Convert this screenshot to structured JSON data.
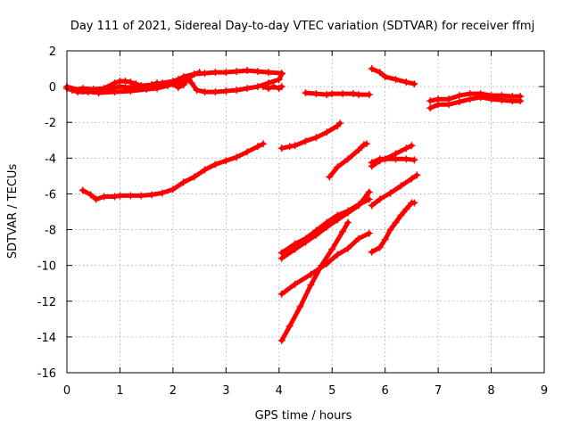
{
  "chart_data": {
    "type": "scatter",
    "title": "Day 111 of 2021, Sidereal Day-to-day VTEC variation (SDTVAR) for receiver ffmj",
    "xlabel": "GPS time / hours",
    "ylabel": "SDTVAR / TECUs",
    "xlim": [
      0,
      9
    ],
    "ylim": [
      -16,
      2
    ],
    "xticks": [
      0,
      1,
      2,
      3,
      4,
      5,
      6,
      7,
      8,
      9
    ],
    "yticks": [
      2,
      0,
      -2,
      -4,
      -6,
      -8,
      -10,
      -12,
      -14,
      -16
    ],
    "grid": true,
    "legend": "none",
    "marker": "plus",
    "color": "#ff0000",
    "series": [
      {
        "points": [
          [
            0.0,
            -0.1
          ],
          [
            0.2,
            -0.3
          ],
          [
            0.4,
            -0.3
          ],
          [
            0.6,
            -0.2
          ],
          [
            0.8,
            -0.1
          ],
          [
            1.0,
            0.0
          ],
          [
            1.2,
            -0.05
          ],
          [
            1.4,
            0.05
          ],
          [
            1.6,
            0.1
          ],
          [
            1.8,
            0.2
          ],
          [
            2.0,
            0.3
          ],
          [
            2.1,
            0.4
          ],
          [
            2.2,
            0.55
          ],
          [
            2.4,
            0.7
          ],
          [
            2.6,
            0.75
          ],
          [
            2.8,
            0.8
          ],
          [
            3.0,
            0.8
          ],
          [
            3.2,
            0.85
          ],
          [
            3.4,
            0.9
          ],
          [
            3.6,
            0.85
          ],
          [
            3.8,
            0.8
          ],
          [
            4.05,
            0.75
          ]
        ]
      },
      {
        "points": [
          [
            0.1,
            -0.2
          ],
          [
            0.3,
            -0.1
          ],
          [
            0.5,
            -0.15
          ],
          [
            0.7,
            -0.1
          ],
          [
            0.9,
            0.2
          ],
          [
            1.0,
            0.3
          ],
          [
            1.1,
            0.3
          ],
          [
            1.2,
            0.25
          ],
          [
            1.3,
            0.15
          ],
          [
            1.4,
            0.05
          ],
          [
            1.5,
            0.0
          ],
          [
            1.6,
            0.1
          ],
          [
            1.7,
            0.2
          ],
          [
            1.8,
            0.1
          ],
          [
            2.0,
            0.2
          ],
          [
            2.2,
            0.3
          ],
          [
            2.3,
            0.5
          ],
          [
            2.4,
            0.7
          ],
          [
            2.5,
            0.8
          ]
        ]
      },
      {
        "points": [
          [
            0.0,
            0.0
          ],
          [
            0.3,
            -0.25
          ],
          [
            0.6,
            -0.35
          ],
          [
            0.9,
            -0.3
          ],
          [
            1.2,
            -0.25
          ],
          [
            1.5,
            -0.15
          ],
          [
            1.7,
            -0.1
          ],
          [
            1.9,
            0.05
          ],
          [
            2.0,
            0.15
          ],
          [
            2.1,
            -0.05
          ],
          [
            2.2,
            0.1
          ],
          [
            2.3,
            0.5
          ],
          [
            2.35,
            0.2
          ],
          [
            2.45,
            -0.2
          ],
          [
            2.6,
            -0.3
          ],
          [
            2.8,
            -0.3
          ],
          [
            3.0,
            -0.25
          ],
          [
            3.2,
            -0.2
          ],
          [
            3.4,
            -0.1
          ],
          [
            3.6,
            0.0
          ],
          [
            3.8,
            0.2
          ],
          [
            4.0,
            0.4
          ],
          [
            4.05,
            0.7
          ]
        ]
      },
      {
        "points": [
          [
            3.7,
            0.0
          ],
          [
            3.8,
            -0.1
          ],
          [
            3.9,
            0.0
          ],
          [
            4.0,
            -0.1
          ],
          [
            4.05,
            0.0
          ]
        ]
      },
      {
        "points": [
          [
            4.5,
            -0.35
          ],
          [
            4.7,
            -0.4
          ],
          [
            4.9,
            -0.45
          ],
          [
            5.0,
            -0.4
          ],
          [
            5.2,
            -0.4
          ],
          [
            5.4,
            -0.4
          ],
          [
            5.5,
            -0.45
          ],
          [
            5.7,
            -0.45
          ]
        ]
      },
      {
        "points": [
          [
            5.75,
            1.0
          ],
          [
            5.9,
            0.8
          ],
          [
            6.0,
            0.55
          ],
          [
            6.2,
            0.4
          ],
          [
            6.4,
            0.25
          ],
          [
            6.55,
            0.15
          ]
        ]
      },
      {
        "points": [
          [
            6.85,
            -0.8
          ],
          [
            7.0,
            -0.7
          ],
          [
            7.2,
            -0.7
          ],
          [
            7.4,
            -0.5
          ],
          [
            7.6,
            -0.4
          ],
          [
            7.8,
            -0.4
          ],
          [
            8.0,
            -0.5
          ],
          [
            8.2,
            -0.5
          ],
          [
            8.4,
            -0.55
          ],
          [
            8.55,
            -0.55
          ]
        ]
      },
      {
        "points": [
          [
            6.85,
            -1.2
          ],
          [
            7.0,
            -1.0
          ],
          [
            7.2,
            -1.0
          ],
          [
            7.4,
            -0.85
          ],
          [
            7.6,
            -0.7
          ],
          [
            7.8,
            -0.6
          ],
          [
            8.0,
            -0.7
          ],
          [
            8.2,
            -0.75
          ],
          [
            8.4,
            -0.8
          ],
          [
            8.55,
            -0.8
          ]
        ]
      },
      {
        "points": [
          [
            0.3,
            -5.8
          ],
          [
            0.45,
            -6.05
          ],
          [
            0.55,
            -6.3
          ],
          [
            0.7,
            -6.15
          ],
          [
            0.9,
            -6.15
          ],
          [
            1.0,
            -6.1
          ],
          [
            1.2,
            -6.1
          ],
          [
            1.4,
            -6.1
          ],
          [
            1.6,
            -6.05
          ],
          [
            1.8,
            -5.95
          ],
          [
            2.0,
            -5.75
          ],
          [
            2.2,
            -5.35
          ],
          [
            2.4,
            -5.05
          ],
          [
            2.6,
            -4.65
          ],
          [
            2.8,
            -4.35
          ],
          [
            3.0,
            -4.15
          ],
          [
            3.2,
            -3.95
          ],
          [
            3.4,
            -3.65
          ],
          [
            3.6,
            -3.35
          ],
          [
            3.7,
            -3.2
          ]
        ]
      },
      {
        "points": [
          [
            4.05,
            -3.45
          ],
          [
            4.2,
            -3.35
          ],
          [
            4.3,
            -3.3
          ],
          [
            4.5,
            -3.05
          ],
          [
            4.7,
            -2.85
          ],
          [
            4.9,
            -2.55
          ],
          [
            5.1,
            -2.2
          ],
          [
            5.15,
            -2.05
          ]
        ]
      },
      {
        "points": [
          [
            4.95,
            -5.05
          ],
          [
            5.1,
            -4.5
          ],
          [
            5.3,
            -4.05
          ],
          [
            5.5,
            -3.55
          ],
          [
            5.6,
            -3.25
          ],
          [
            5.65,
            -3.2
          ]
        ]
      },
      {
        "points": [
          [
            5.75,
            -4.45
          ],
          [
            5.9,
            -4.15
          ],
          [
            6.0,
            -4.05
          ],
          [
            6.2,
            -3.75
          ],
          [
            6.4,
            -3.45
          ],
          [
            6.5,
            -3.3
          ]
        ]
      },
      {
        "points": [
          [
            5.75,
            -4.25
          ],
          [
            5.9,
            -4.05
          ],
          [
            6.0,
            -4.05
          ],
          [
            6.2,
            -4.05
          ],
          [
            6.4,
            -4.05
          ],
          [
            6.55,
            -4.1
          ]
        ]
      },
      {
        "points": [
          [
            5.75,
            -6.65
          ],
          [
            5.9,
            -6.3
          ],
          [
            6.1,
            -5.95
          ],
          [
            6.3,
            -5.55
          ],
          [
            6.5,
            -5.15
          ],
          [
            6.6,
            -4.95
          ]
        ]
      },
      {
        "points": [
          [
            4.05,
            -9.3
          ],
          [
            4.3,
            -8.8
          ],
          [
            4.5,
            -8.5
          ],
          [
            4.7,
            -8.05
          ],
          [
            4.9,
            -7.6
          ],
          [
            5.1,
            -7.2
          ],
          [
            5.3,
            -6.95
          ],
          [
            5.5,
            -6.6
          ],
          [
            5.7,
            -6.3
          ]
        ]
      },
      {
        "points": [
          [
            4.05,
            -9.6
          ],
          [
            4.3,
            -9.1
          ],
          [
            4.5,
            -8.7
          ],
          [
            4.7,
            -8.3
          ],
          [
            4.9,
            -7.85
          ],
          [
            5.1,
            -7.45
          ],
          [
            5.3,
            -7.05
          ],
          [
            5.5,
            -6.65
          ],
          [
            5.7,
            -5.9
          ]
        ]
      },
      {
        "points": [
          [
            4.05,
            -11.6
          ],
          [
            4.3,
            -11.05
          ],
          [
            4.6,
            -10.5
          ],
          [
            4.9,
            -9.9
          ],
          [
            5.1,
            -9.4
          ],
          [
            5.3,
            -9.05
          ],
          [
            5.5,
            -8.5
          ],
          [
            5.7,
            -8.2
          ]
        ]
      },
      {
        "points": [
          [
            4.05,
            -14.2
          ],
          [
            4.2,
            -13.4
          ],
          [
            4.4,
            -12.3
          ],
          [
            4.6,
            -11.1
          ],
          [
            4.8,
            -10.0
          ],
          [
            5.0,
            -9.1
          ],
          [
            5.2,
            -8.1
          ],
          [
            5.3,
            -7.6
          ]
        ]
      },
      {
        "points": [
          [
            5.75,
            -9.25
          ],
          [
            5.9,
            -9.0
          ],
          [
            6.0,
            -8.55
          ],
          [
            6.1,
            -8.0
          ],
          [
            6.2,
            -7.6
          ],
          [
            6.3,
            -7.2
          ],
          [
            6.4,
            -6.85
          ],
          [
            6.5,
            -6.5
          ],
          [
            6.55,
            -6.5
          ]
        ]
      }
    ]
  }
}
